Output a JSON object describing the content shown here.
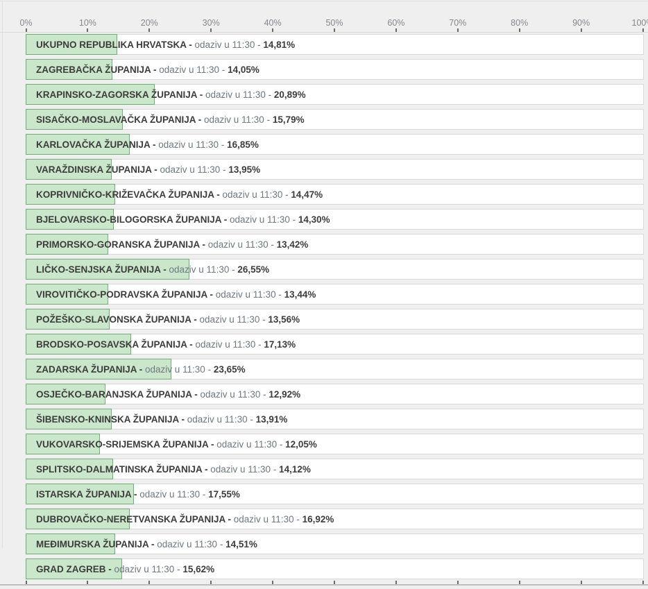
{
  "chart_data": {
    "type": "bar",
    "orientation": "horizontal",
    "unit": "%",
    "xlim": [
      0,
      100
    ],
    "grid": false,
    "legend": "none",
    "axis_ticks": [
      "0%",
      "10%",
      "20%",
      "30%",
      "40%",
      "50%",
      "60%",
      "70%",
      "80%",
      "90%",
      "100%"
    ],
    "row_text": {
      "separator": "-",
      "mid": "odaziv u 11:30"
    },
    "rows": [
      {
        "name": "UKUPNO REPUBLIKA HRVATSKA",
        "value": 14.81,
        "value_label": "14,81%"
      },
      {
        "name": "ZAGREBAČKA ŽUPANIJA",
        "value": 14.05,
        "value_label": "14,05%"
      },
      {
        "name": "KRAPINSKO-ZAGORSKA ŽUPANIJA",
        "value": 20.89,
        "value_label": "20,89%"
      },
      {
        "name": "SISAČKO-MOSLAVAČKA ŽUPANIJA",
        "value": 15.79,
        "value_label": "15,79%"
      },
      {
        "name": "KARLOVAČKA ŽUPANIJA",
        "value": 16.85,
        "value_label": "16,85%"
      },
      {
        "name": "VARAŽDINSKA ŽUPANIJA",
        "value": 13.95,
        "value_label": "13,95%"
      },
      {
        "name": "KOPRIVNIČKO-KRIŽEVAČKA ŽUPANIJA",
        "value": 14.47,
        "value_label": "14,47%"
      },
      {
        "name": "BJELOVARSKO-BILOGORSKA ŽUPANIJA",
        "value": 14.3,
        "value_label": "14,30%"
      },
      {
        "name": "PRIMORSKO-GORANSKA ŽUPANIJA",
        "value": 13.42,
        "value_label": "13,42%"
      },
      {
        "name": "LIČKO-SENJSKA ŽUPANIJA",
        "value": 26.55,
        "value_label": "26,55%"
      },
      {
        "name": "VIROVITIČKO-PODRAVSKA ŽUPANIJA",
        "value": 13.44,
        "value_label": "13,44%"
      },
      {
        "name": "POŽEŠKO-SLAVONSKA ŽUPANIJA",
        "value": 13.56,
        "value_label": "13,56%"
      },
      {
        "name": "BRODSKO-POSAVSKA ŽUPANIJA",
        "value": 17.13,
        "value_label": "17,13%"
      },
      {
        "name": "ZADARSKA ŽUPANIJA",
        "value": 23.65,
        "value_label": "23,65%"
      },
      {
        "name": "OSJEČKO-BARANJSKA ŽUPANIJA",
        "value": 12.92,
        "value_label": "12,92%"
      },
      {
        "name": "ŠIBENSKO-KNINSKA ŽUPANIJA",
        "value": 13.91,
        "value_label": "13,91%"
      },
      {
        "name": "VUKOVARSKO-SRIJEMSKA ŽUPANIJA",
        "value": 12.05,
        "value_label": "12,05%"
      },
      {
        "name": "SPLITSKO-DALMATINSKA ŽUPANIJA",
        "value": 14.12,
        "value_label": "14,12%"
      },
      {
        "name": "ISTARSKA ŽUPANIJA",
        "value": 17.55,
        "value_label": "17,55%"
      },
      {
        "name": "DUBROVAČKO-NERETVANSKA ŽUPANIJA",
        "value": 16.92,
        "value_label": "16,92%"
      },
      {
        "name": "MEĐIMURSKA ŽUPANIJA",
        "value": 14.51,
        "value_label": "14,51%"
      },
      {
        "name": "GRAD ZAGREB",
        "value": 15.62,
        "value_label": "15,62%"
      }
    ]
  },
  "colors": {
    "page_bg": "#efefef",
    "row_bg": "#ffffff",
    "row_border": "#dadada",
    "bar_fill": "#cbe7cb",
    "bar_border": "#72ab74",
    "axis_label": "#87878f",
    "tick": "#6b6b6b",
    "name_text": "#3c3c3c",
    "mid_text": "#6d7781"
  }
}
